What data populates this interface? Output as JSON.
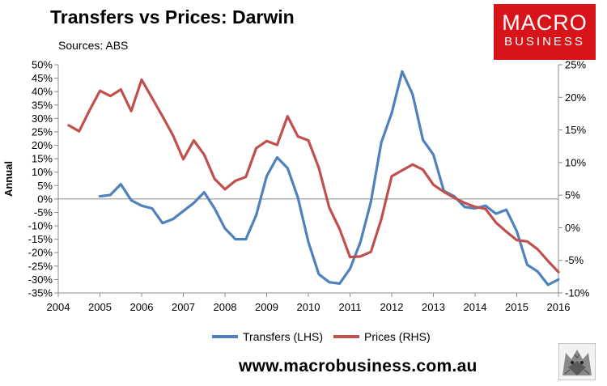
{
  "chart_data": {
    "type": "line",
    "title": "Transfers vs Prices: Darwin",
    "subtitle": "Sources: ABS",
    "ylabel": "Annual",
    "ylim_left": [
      -35,
      50
    ],
    "ylim_right": [
      -10,
      25
    ],
    "y_left_ticks": [
      "50%",
      "45%",
      "40%",
      "35%",
      "30%",
      "25%",
      "20%",
      "15%",
      "10%",
      "5%",
      "0%",
      "-5%",
      "-10%",
      "-15%",
      "-20%",
      "-25%",
      "-30%",
      "-35%"
    ],
    "y_right_ticks": [
      "25%",
      "20%",
      "15%",
      "10%",
      "5%",
      "0%",
      "-5%",
      "-10%"
    ],
    "xlim": [
      2004,
      2016
    ],
    "x_ticks": [
      "2004",
      "2005",
      "2006",
      "2007",
      "2008",
      "2009",
      "2010",
      "2011",
      "2012",
      "2013",
      "2014",
      "2015",
      "2016"
    ],
    "legend_position": "bottom",
    "grid": false,
    "series": [
      {
        "name": "Transfers (LHS)",
        "axis": "left",
        "color": "#4f81bd",
        "x": [
          2005.0,
          2005.25,
          2005.5,
          2005.75,
          2006.0,
          2006.25,
          2006.5,
          2006.75,
          2007.0,
          2007.25,
          2007.5,
          2007.75,
          2008.0,
          2008.25,
          2008.5,
          2008.75,
          2009.0,
          2009.25,
          2009.5,
          2009.75,
          2010.0,
          2010.25,
          2010.5,
          2010.75,
          2011.0,
          2011.25,
          2011.5,
          2011.75,
          2012.0,
          2012.25,
          2012.5,
          2012.75,
          2013.0,
          2013.25,
          2013.5,
          2013.75,
          2014.0,
          2014.25,
          2014.5,
          2014.75,
          2015.0,
          2015.25,
          2015.5,
          2015.75,
          2016.0
        ],
        "values": [
          1,
          1.5,
          5.5,
          -0.5,
          -2.5,
          -3.5,
          -9,
          -7.5,
          -4.5,
          -1.5,
          2.5,
          -3.5,
          -11,
          -15,
          -15,
          -6,
          8.5,
          15.5,
          11.5,
          0.5,
          -16,
          -28,
          -31,
          -31.5,
          -26,
          -16,
          -1,
          21,
          32,
          47.5,
          39,
          22,
          16.5,
          3,
          1,
          -3,
          -3.5,
          -2.5,
          -5.5,
          -4,
          -12,
          -24.5,
          -27,
          -32,
          -30
        ]
      },
      {
        "name": "Prices (RHS)",
        "axis": "right",
        "color": "#c0504d",
        "x": [
          2004.25,
          2004.5,
          2004.75,
          2005.0,
          2005.25,
          2005.5,
          2005.75,
          2006.0,
          2006.25,
          2006.5,
          2006.75,
          2007.0,
          2007.25,
          2007.5,
          2007.75,
          2008.0,
          2008.25,
          2008.5,
          2008.75,
          2009.0,
          2009.25,
          2009.5,
          2009.75,
          2010.0,
          2010.25,
          2010.5,
          2010.75,
          2011.0,
          2011.25,
          2011.5,
          2011.75,
          2012.0,
          2012.25,
          2012.5,
          2012.75,
          2013.0,
          2013.25,
          2013.5,
          2013.75,
          2014.0,
          2014.25,
          2014.5,
          2014.75,
          2015.0,
          2015.25,
          2015.5,
          2015.75,
          2016.0
        ],
        "values": [
          15.7,
          14.8,
          18,
          21,
          20.2,
          21.2,
          17.9,
          22.7,
          19.9,
          17.1,
          14.2,
          10.5,
          13.4,
          11.2,
          7.5,
          5.9,
          7.2,
          7.8,
          12.2,
          13.3,
          12.7,
          17.1,
          14,
          13.4,
          9.2,
          3.1,
          -0.2,
          -4.5,
          -4.4,
          -3.7,
          1.3,
          7.9,
          8.8,
          9.7,
          8.9,
          6.6,
          5.5,
          4.6,
          3.8,
          3.2,
          2.9,
          0.8,
          -0.6,
          -1.9,
          -2.1,
          -3.3,
          -5.1,
          -6.8
        ]
      }
    ]
  },
  "logo": {
    "line1": "MACRO",
    "line2": "BUSINESS"
  },
  "footer": {
    "url": "www.macrobusiness.com.au"
  }
}
